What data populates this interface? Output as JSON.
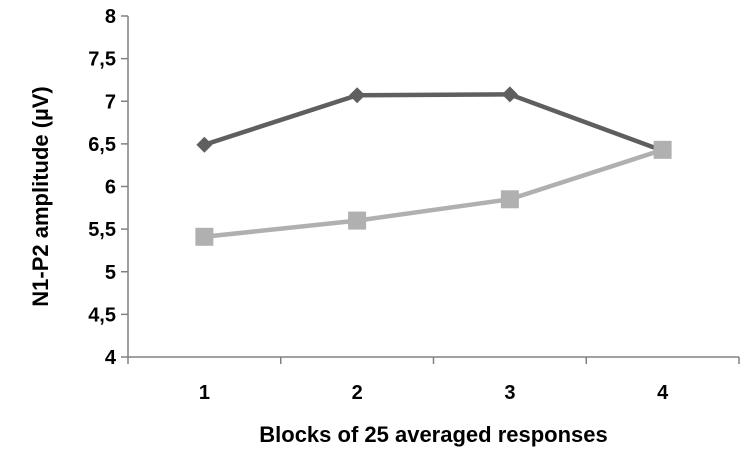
{
  "chart_data": {
    "type": "line",
    "title": "",
    "xlabel": "Blocks of 25 averaged responses",
    "ylabel": "N1-P2  amplitude (µV)",
    "categories": [
      "1",
      "2",
      "3",
      "4"
    ],
    "ylim": [
      4,
      8
    ],
    "yticks": [
      "4",
      "4,5",
      "5",
      "5,5",
      "6",
      "6,5",
      "7",
      "7,5",
      "8"
    ],
    "ytick_values": [
      4,
      4.5,
      5,
      5.5,
      6,
      6.5,
      7,
      7.5,
      8
    ],
    "grid": false,
    "legend": "none",
    "series": [
      {
        "values": [
          6.49,
          7.07,
          7.08,
          6.42
        ],
        "color": "#5f5f5f",
        "marker": "diamond"
      },
      {
        "values": [
          5.41,
          5.6,
          5.85,
          6.43
        ],
        "color": "#b0b0b0",
        "marker": "square"
      }
    ]
  }
}
